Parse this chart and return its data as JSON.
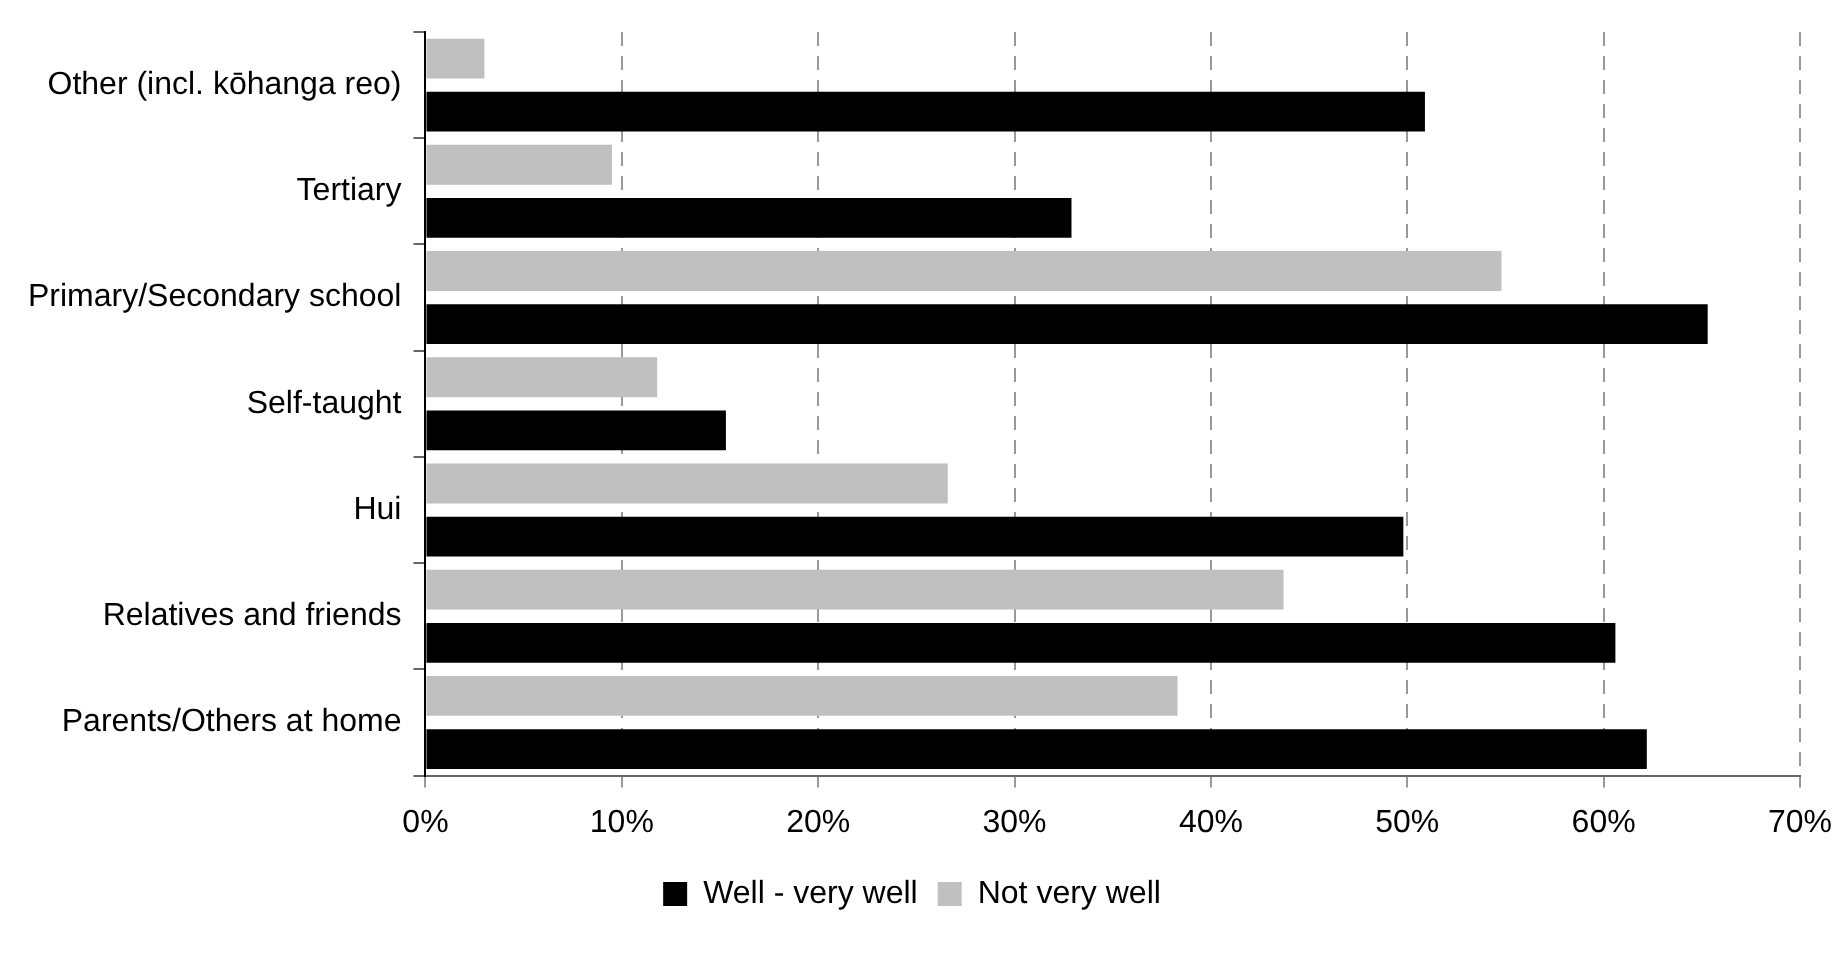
{
  "chart_data": {
    "type": "bar",
    "orientation": "horizontal",
    "categories": [
      "Other (incl. kōhanga reo)",
      "Tertiary",
      "Primary/Secondary school",
      "Self-taught",
      "Hui",
      "Relatives and friends",
      "Parents/Others at home"
    ],
    "series": [
      {
        "name": "Well - very well",
        "color": "#000000",
        "values": [
          50.9,
          32.9,
          65.3,
          15.3,
          49.8,
          60.6,
          62.2
        ]
      },
      {
        "name": "Not very well",
        "color": "#c0c0c0",
        "values": [
          3.0,
          9.5,
          54.8,
          11.8,
          26.6,
          43.7,
          38.3
        ]
      }
    ],
    "xlim": [
      0,
      70
    ],
    "xticks": [
      {
        "value": 0,
        "label": "0%"
      },
      {
        "value": 10,
        "label": "10%"
      },
      {
        "value": 20,
        "label": "20%"
      },
      {
        "value": 30,
        "label": "30%"
      },
      {
        "value": 40,
        "label": "40%"
      },
      {
        "value": 50,
        "label": "50%"
      },
      {
        "value": 60,
        "label": "60%"
      },
      {
        "value": 70,
        "label": "70%"
      }
    ],
    "grid": "x",
    "legend": "bottom"
  }
}
